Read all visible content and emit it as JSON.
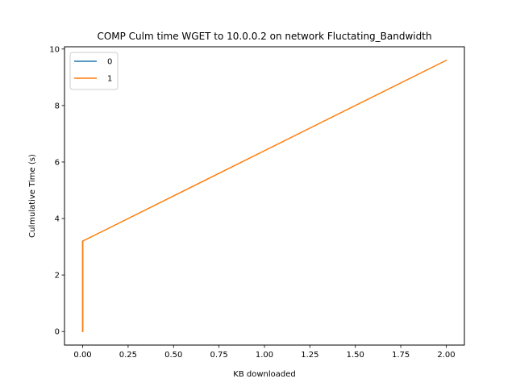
{
  "chart_data": {
    "type": "line",
    "title": "COMP Culm time WGET to 10.0.0.2 on network Fluctating_Bandwidth",
    "xlabel": "KB downloaded",
    "ylabel": "Culmulative Time (s)",
    "xlim": [
      -0.1,
      2.1
    ],
    "ylim": [
      -0.48,
      10.08
    ],
    "xticks": [
      0.0,
      0.25,
      0.5,
      0.75,
      1.0,
      1.25,
      1.5,
      1.75,
      2.0
    ],
    "xtick_labels": [
      "0.00",
      "0.25",
      "0.50",
      "0.75",
      "1.00",
      "1.25",
      "1.50",
      "1.75",
      "2.00"
    ],
    "yticks": [
      0,
      2,
      4,
      6,
      8,
      10
    ],
    "ytick_labels": [
      "0",
      "2",
      "4",
      "6",
      "8",
      "10"
    ],
    "grid": false,
    "legend_position": "top-left",
    "series": [
      {
        "name": "0",
        "color": "#1f77b4",
        "x": [
          0.0,
          0.0
        ],
        "y": [
          0.0,
          3.2
        ]
      },
      {
        "name": "1",
        "color": "#ff7f0e",
        "x": [
          0.0,
          0.0,
          2.0
        ],
        "y": [
          0.0,
          3.2,
          9.6
        ]
      }
    ]
  }
}
